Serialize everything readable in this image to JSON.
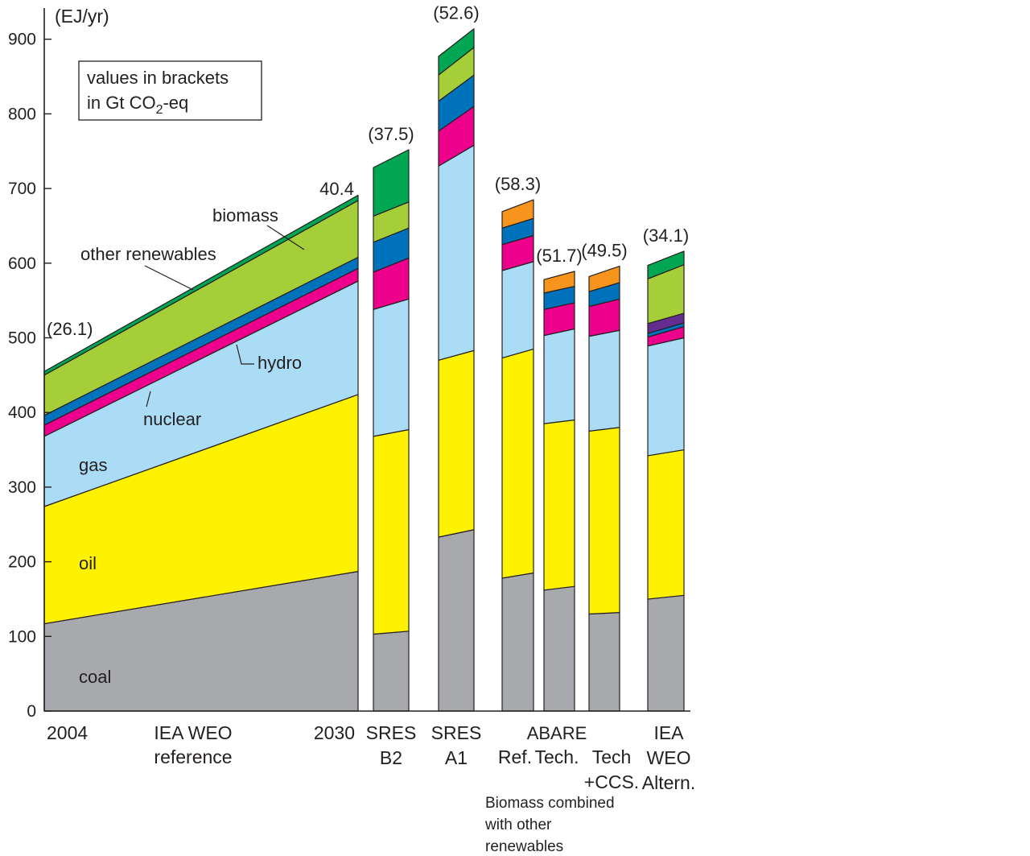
{
  "chart_data": {
    "type": "stacked-area-and-bar",
    "ylabel": "(EJ/yr)",
    "ylim": [
      0,
      910
    ],
    "yticks": [
      0,
      100,
      200,
      300,
      400,
      500,
      600,
      700,
      800,
      900
    ],
    "note": {
      "line1": "values in brackets",
      "line2_prefix": "in Gt CO",
      "line2_sub": "2",
      "line2_suffix": "-eq"
    },
    "layer_order": [
      "coal",
      "oil",
      "gas",
      "nuclear",
      "hydro",
      "other_renewables",
      "biomass",
      "extra"
    ],
    "colors": {
      "coal": "#a7a9ac",
      "oil": "#fff200",
      "gas": "#abdcf5",
      "nuclear": "#ec008c",
      "hydro": "#0072bc",
      "other_renewables": "#00a651",
      "biomass": "#a6ce39",
      "extra": "#662d91",
      "combined": "#f7941d"
    },
    "layer_labels": {
      "biomass": "biomass",
      "other_renewables": "other renewables",
      "hydro": "hydro",
      "nuclear": "nuclear",
      "gas": "gas",
      "oil": "oil",
      "coal": "coal"
    },
    "area": {
      "start_label": "2004",
      "middle_label_1": "IEA WEO",
      "middle_label_2": "reference",
      "end_label": "2030",
      "start_annotation": "(26.1)",
      "end_annotation": "40.4",
      "start": {
        "coal": 117,
        "oil": 157,
        "gas": 94,
        "nuclear": 15,
        "hydro": 13,
        "biomass": 54,
        "other_renewables": 5
      },
      "end": {
        "coal": 187,
        "oil": 237,
        "gas": 152,
        "nuclear": 17,
        "hydro": 15,
        "biomass": 76,
        "other_renewables": 7
      }
    },
    "bars": [
      {
        "id": "sres-b2",
        "label_lines": [
          "SRES",
          "B2"
        ],
        "annotation": "(37.5)",
        "left": {
          "coal": 103,
          "oil": 265,
          "gas": 170,
          "nuclear": 50,
          "hydro": 40,
          "biomass": 35,
          "other_renewables": 65
        },
        "right": {
          "coal": 107,
          "oil": 270,
          "gas": 175,
          "nuclear": 55,
          "hydro": 40,
          "biomass": 35,
          "other_renewables": 70
        }
      },
      {
        "id": "sres-a1",
        "label_lines": [
          "SRES",
          "A1"
        ],
        "annotation": "(52.6)",
        "left": {
          "coal": 233,
          "oil": 237,
          "gas": 260,
          "nuclear": 47,
          "hydro": 40,
          "biomass": 35,
          "other_renewables": 25
        },
        "right": {
          "coal": 243,
          "oil": 240,
          "gas": 275,
          "nuclear": 52,
          "hydro": 42,
          "biomass": 37,
          "other_renewables": 25
        }
      },
      {
        "id": "abare-ref",
        "label_lines": [
          "Ref."
        ],
        "annotation": "(58.3)",
        "left": {
          "coal": 178,
          "oil": 295,
          "gas": 117,
          "nuclear": 35,
          "hydro": 22,
          "combined": 22
        },
        "right": {
          "coal": 185,
          "oil": 300,
          "gas": 117,
          "nuclear": 35,
          "hydro": 23,
          "combined": 25
        }
      },
      {
        "id": "abare-tech",
        "label_lines": [
          "Tech."
        ],
        "annotation": "(51.7)",
        "left": {
          "coal": 162,
          "oil": 223,
          "gas": 118,
          "nuclear": 35,
          "hydro": 22,
          "combined": 18
        },
        "right": {
          "coal": 167,
          "oil": 223,
          "gas": 122,
          "nuclear": 35,
          "hydro": 22,
          "combined": 20
        }
      },
      {
        "id": "abare-tech-ccs",
        "label_lines": [
          "Tech",
          "+CCS."
        ],
        "annotation": "(49.5)",
        "left": {
          "coal": 130,
          "oil": 245,
          "gas": 127,
          "nuclear": 40,
          "hydro": 20,
          "combined": 20
        },
        "right": {
          "coal": 132,
          "oil": 248,
          "gas": 130,
          "nuclear": 42,
          "hydro": 22,
          "combined": 22
        }
      },
      {
        "id": "iea-weo-altern",
        "label_lines": [
          "IEA",
          "WEO",
          "Altern."
        ],
        "annotation": "(34.1)",
        "left": {
          "coal": 150,
          "oil": 192,
          "gas": 147,
          "nuclear": 12,
          "hydro": 5,
          "extra": 13,
          "biomass": 60,
          "other_renewables": 18
        },
        "right": {
          "coal": 155,
          "oil": 195,
          "gas": 150,
          "nuclear": 15,
          "hydro": 5,
          "extra": 13,
          "biomass": 65,
          "other_renewables": 18
        }
      }
    ],
    "abare_group_label": "ABARE",
    "abare_note": [
      "Biomass combined",
      "with other",
      "renewables"
    ]
  }
}
